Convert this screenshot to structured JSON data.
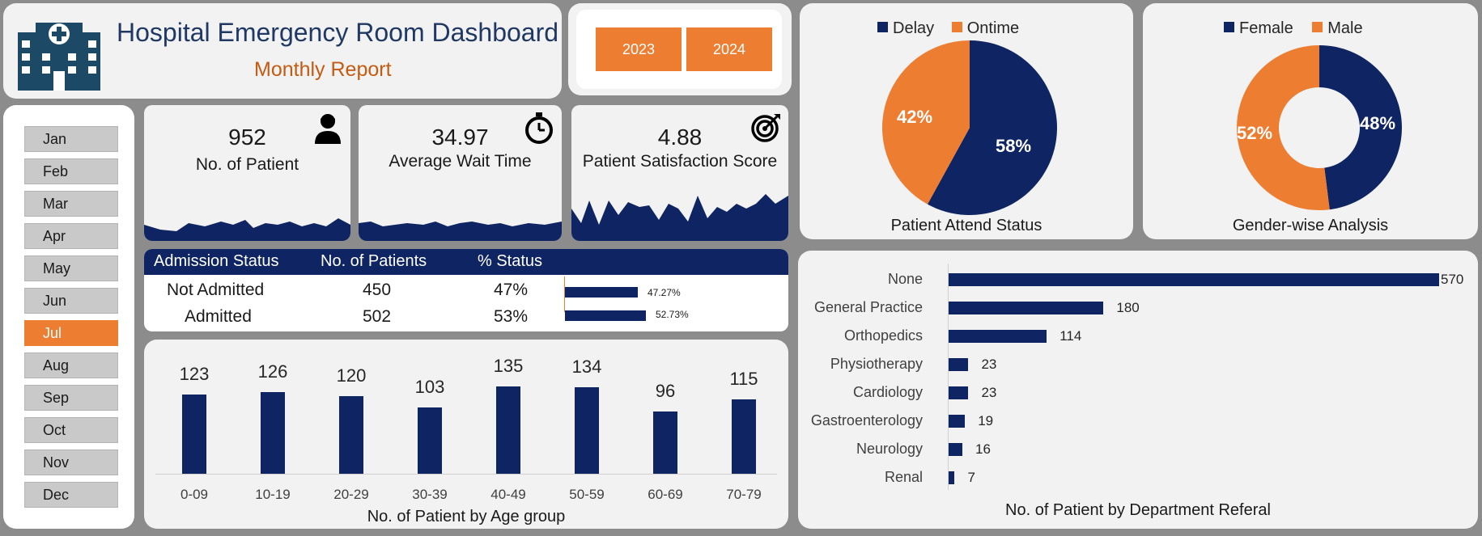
{
  "header": {
    "title": "Hospital Emergency Room Dashboard",
    "subtitle": "Monthly Report",
    "logo_icon": "hospital-building-icon"
  },
  "years": [
    "2023",
    "2024"
  ],
  "months": [
    "Jan",
    "Feb",
    "Mar",
    "Apr",
    "May",
    "Jun",
    "Jul",
    "Aug",
    "Sep",
    "Oct",
    "Nov",
    "Dec"
  ],
  "selected_month": "Jul",
  "kpis": {
    "patients": {
      "value": "952",
      "label": "No. of Patient",
      "icon": "person-icon"
    },
    "wait_time": {
      "value": "34.97",
      "label": "Average Wait Time",
      "icon": "stopwatch-icon"
    },
    "satisfaction": {
      "value": "4.88",
      "label": "Patient Satisfaction Score",
      "icon": "target-icon"
    }
  },
  "admission": {
    "headers": [
      "Admission Status",
      "No. of Patients",
      "% Status"
    ],
    "rows": [
      {
        "status": "Not Admitted",
        "count": "450",
        "pct": "47%",
        "bar_label": "47.27%",
        "fraction": 0.4727
      },
      {
        "status": "Admitted",
        "count": "502",
        "pct": "53%",
        "bar_label": "52.73%",
        "fraction": 0.5273
      }
    ]
  },
  "colors": {
    "navy": "#0f2462",
    "orange": "#ed7d31"
  },
  "chart_data": [
    {
      "type": "bar",
      "title": "No. of Patient by Age group",
      "categories": [
        "0-09",
        "10-19",
        "20-29",
        "30-39",
        "40-49",
        "50-59",
        "60-69",
        "70-79"
      ],
      "values": [
        123,
        126,
        120,
        103,
        135,
        134,
        96,
        115
      ]
    },
    {
      "type": "pie",
      "title": "Patient Attend Status",
      "legend": [
        "Delay",
        "Ontime"
      ],
      "labels": [
        "58%",
        "42%"
      ],
      "values": [
        58,
        42
      ]
    },
    {
      "type": "pie",
      "title": "Gender-wise Analysis",
      "legend": [
        "Female",
        "Male"
      ],
      "labels": [
        "48%",
        "52%"
      ],
      "values": [
        48,
        52
      ]
    },
    {
      "type": "bar",
      "title": "No. of Patient by Department Referal",
      "categories": [
        "None",
        "General Practice",
        "Orthopedics",
        "Physiotherapy",
        "Cardiology",
        "Gastroenterology",
        "Neurology",
        "Renal"
      ],
      "values": [
        570,
        180,
        114,
        23,
        23,
        19,
        16,
        7
      ]
    }
  ]
}
